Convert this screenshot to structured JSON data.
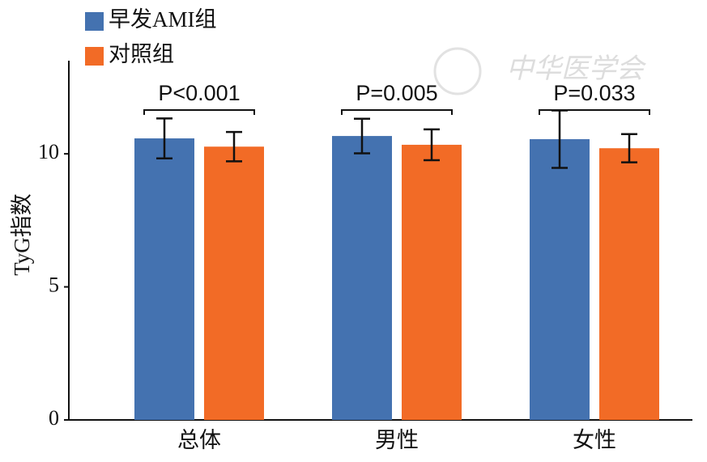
{
  "chart_data": {
    "type": "bar",
    "y_label": "TyG指数",
    "categories": [
      "总体",
      "男性",
      "女性"
    ],
    "series": [
      {
        "name": "早发AMI组",
        "color": "#4472b0",
        "values": [
          10.58,
          10.67,
          10.55
        ],
        "errors": [
          0.75,
          0.65,
          1.08
        ]
      },
      {
        "name": "对照组",
        "color": "#f26b26",
        "values": [
          10.27,
          10.34,
          10.21
        ],
        "errors": [
          0.55,
          0.58,
          0.53
        ]
      }
    ],
    "annotations": [
      "P<0.001",
      "P=0.005",
      "P=0.033"
    ],
    "ylim": [
      0,
      13.5
    ],
    "yticks": [
      0,
      5,
      10
    ],
    "legend": "top-left",
    "watermark": "中华医学会"
  }
}
